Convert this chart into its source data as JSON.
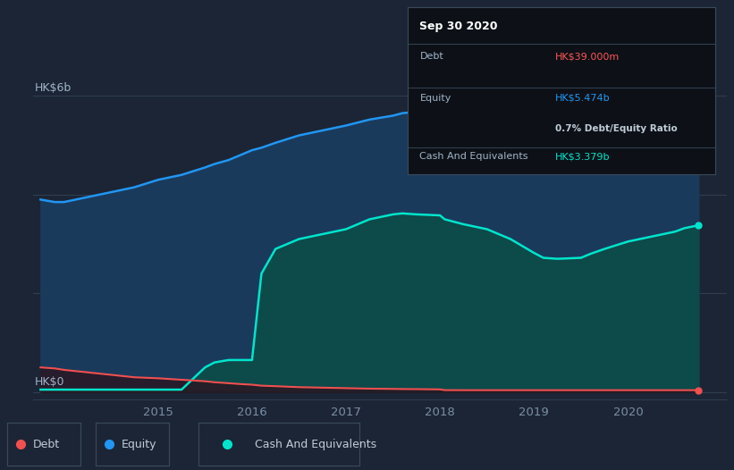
{
  "background_color": "#1c2535",
  "chart_bg": "#1c2535",
  "ylabel_top": "HK$6b",
  "ylabel_bottom": "HK$0",
  "x_ticks": [
    2015,
    2016,
    2017,
    2018,
    2019,
    2020
  ],
  "ylim": [
    -0.15,
    6.8
  ],
  "xlim_start": 2013.67,
  "xlim_end": 2021.05,
  "equity_color": "#2196f3",
  "equity_fill": "#1a3a5c",
  "cash_color": "#00e5cc",
  "cash_fill": "#0d4a4a",
  "debt_color": "#f05050",
  "tooltip_bg": "#0d1117",
  "tooltip_border": "#3a4a5a",
  "time_years": [
    2013.75,
    2013.9,
    2014.0,
    2014.25,
    2014.5,
    2014.75,
    2015.0,
    2015.25,
    2015.5,
    2015.6,
    2015.75,
    2015.9,
    2016.0,
    2016.1,
    2016.25,
    2016.5,
    2016.75,
    2017.0,
    2017.25,
    2017.5,
    2017.6,
    2017.75,
    2018.0,
    2018.05,
    2018.25,
    2018.5,
    2018.75,
    2019.0,
    2019.1,
    2019.25,
    2019.5,
    2019.6,
    2019.75,
    2020.0,
    2020.25,
    2020.5,
    2020.6,
    2020.75
  ],
  "equity_values": [
    3.9,
    3.85,
    3.85,
    3.95,
    4.05,
    4.15,
    4.3,
    4.4,
    4.55,
    4.62,
    4.7,
    4.82,
    4.9,
    4.95,
    5.05,
    5.2,
    5.3,
    5.4,
    5.52,
    5.6,
    5.65,
    5.68,
    5.7,
    5.68,
    5.65,
    5.62,
    5.58,
    5.5,
    5.48,
    5.45,
    5.44,
    5.45,
    5.46,
    5.474,
    5.47,
    5.47,
    5.474,
    5.474
  ],
  "cash_values": [
    0.05,
    0.05,
    0.05,
    0.05,
    0.05,
    0.05,
    0.05,
    0.05,
    0.5,
    0.6,
    0.65,
    0.65,
    0.65,
    2.4,
    2.9,
    3.1,
    3.2,
    3.3,
    3.5,
    3.6,
    3.62,
    3.6,
    3.58,
    3.5,
    3.4,
    3.3,
    3.1,
    2.82,
    2.72,
    2.7,
    2.72,
    2.8,
    2.9,
    3.05,
    3.15,
    3.25,
    3.32,
    3.379
  ],
  "debt_values": [
    0.5,
    0.48,
    0.45,
    0.4,
    0.35,
    0.3,
    0.28,
    0.25,
    0.22,
    0.2,
    0.18,
    0.16,
    0.15,
    0.13,
    0.12,
    0.1,
    0.09,
    0.08,
    0.07,
    0.065,
    0.062,
    0.06,
    0.055,
    0.04,
    0.039,
    0.039,
    0.039,
    0.039,
    0.039,
    0.039,
    0.039,
    0.039,
    0.039,
    0.039,
    0.039,
    0.039,
    0.039,
    0.039
  ],
  "tooltip_title": "Sep 30 2020",
  "tooltip_debt_label": "Debt",
  "tooltip_debt_value": "HK$39.000m",
  "tooltip_equity_label": "Equity",
  "tooltip_equity_value": "HK$5.474b",
  "tooltip_ratio": "0.7% Debt/Equity Ratio",
  "tooltip_cash_label": "Cash And Equivalents",
  "tooltip_cash_value": "HK$3.379b",
  "legend_items": [
    "Debt",
    "Equity",
    "Cash And Equivalents"
  ]
}
